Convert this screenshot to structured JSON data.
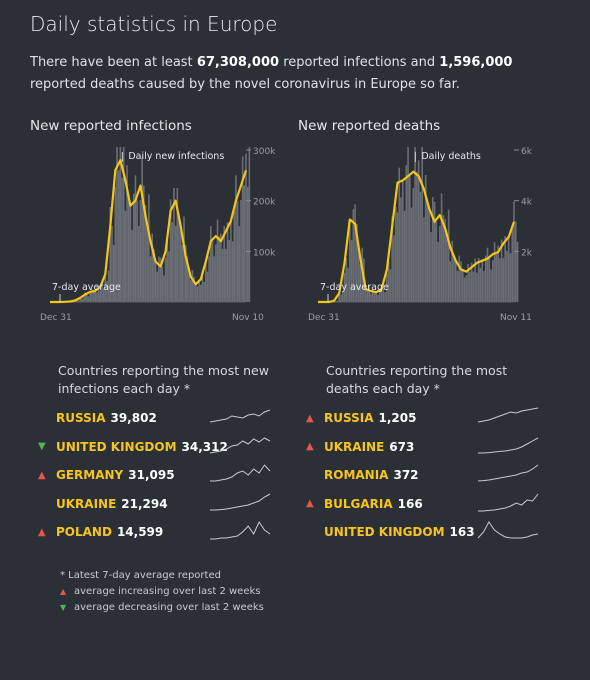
{
  "page": {
    "title": "Daily statistics in Europe",
    "summary": {
      "part1": "There have been at least",
      "infections": "67,308,000",
      "part2": "reported infections and",
      "deaths": "1,596,000",
      "part3": "reported deaths caused by the novel coronavirus in Europe so far."
    }
  },
  "colors": {
    "background": "#2b2f36",
    "accent_line": "#f5c518",
    "bars": "#7b7f86",
    "up": "#e8564b",
    "down": "#4fb65b"
  },
  "chart_data": [
    {
      "type": "area",
      "title": "New reported infections",
      "series_label": "Daily new infections",
      "average_label": "7-day average",
      "x_start": "Dec 31",
      "x_end": "Nov 10",
      "yticks": [
        "100k",
        "200k",
        "300k"
      ],
      "ylim": [
        0,
        300000
      ],
      "average_values": [
        0,
        0,
        0,
        300,
        1000,
        3000,
        8000,
        15000,
        20000,
        22000,
        30000,
        55000,
        150000,
        260000,
        280000,
        240000,
        190000,
        200000,
        230000,
        170000,
        120000,
        80000,
        70000,
        100000,
        180000,
        200000,
        150000,
        90000,
        50000,
        35000,
        45000,
        80000,
        120000,
        130000,
        120000,
        140000,
        160000,
        200000,
        230000,
        260000
      ]
    },
    {
      "type": "area",
      "title": "New reported deaths",
      "series_label": "Daily deaths",
      "average_label": "7-day average",
      "x_start": "Dec 31",
      "x_end": "Nov 11",
      "yticks": [
        "2k",
        "4k",
        "6k"
      ],
      "ylim": [
        0,
        7000
      ],
      "average_values": [
        0,
        0,
        0,
        50,
        400,
        1800,
        3800,
        3600,
        2000,
        600,
        500,
        450,
        600,
        1500,
        3500,
        5500,
        5600,
        5800,
        6000,
        5800,
        5200,
        4300,
        3700,
        4000,
        3400,
        2500,
        1900,
        1500,
        1400,
        1600,
        1800,
        1900,
        2000,
        2200,
        2300,
        2700,
        3000,
        3700
      ]
    }
  ],
  "lists": {
    "infections": {
      "title": "Countries reporting the most new infections each day *",
      "rows": [
        {
          "country": "RUSSIA",
          "value": "39,802",
          "trend": "none",
          "spark": [
            0.2,
            0.25,
            0.3,
            0.35,
            0.5,
            0.45,
            0.4,
            0.55,
            0.6,
            0.5,
            0.7,
            0.8
          ]
        },
        {
          "country": "UNITED KINGDOM",
          "value": "34,312",
          "trend": "down",
          "spark": [
            0.1,
            0.15,
            0.2,
            0.3,
            0.45,
            0.5,
            0.7,
            0.55,
            0.8,
            0.65,
            0.85,
            0.7
          ]
        },
        {
          "country": "GERMANY",
          "value": "31,095",
          "trend": "up",
          "spark": [
            0.1,
            0.1,
            0.15,
            0.2,
            0.3,
            0.5,
            0.6,
            0.4,
            0.7,
            0.5,
            0.9,
            0.6
          ]
        },
        {
          "country": "UKRAINE",
          "value": "21,294",
          "trend": "none",
          "spark": [
            0.1,
            0.1,
            0.12,
            0.15,
            0.2,
            0.25,
            0.3,
            0.35,
            0.45,
            0.55,
            0.75,
            0.9
          ]
        },
        {
          "country": "POLAND",
          "value": "14,599",
          "trend": "up",
          "spark": [
            0.05,
            0.05,
            0.1,
            0.1,
            0.15,
            0.2,
            0.4,
            0.7,
            0.3,
            0.9,
            0.5,
            0.3
          ]
        }
      ]
    },
    "deaths": {
      "title": "Countries reporting the most deaths each day *",
      "rows": [
        {
          "country": "RUSSIA",
          "value": "1,205",
          "trend": "up",
          "spark": [
            0.2,
            0.25,
            0.3,
            0.4,
            0.5,
            0.6,
            0.7,
            0.65,
            0.75,
            0.8,
            0.85,
            0.9
          ]
        },
        {
          "country": "UKRAINE",
          "value": "673",
          "trend": "up",
          "spark": [
            0.1,
            0.1,
            0.12,
            0.15,
            0.18,
            0.2,
            0.25,
            0.3,
            0.4,
            0.55,
            0.7,
            0.85
          ]
        },
        {
          "country": "ROMANIA",
          "value": "372",
          "trend": "none",
          "spark": [
            0.1,
            0.12,
            0.15,
            0.2,
            0.25,
            0.3,
            0.35,
            0.4,
            0.5,
            0.55,
            0.7,
            0.9
          ]
        },
        {
          "country": "BULGARIA",
          "value": "166",
          "trend": "up",
          "spark": [
            0.05,
            0.05,
            0.08,
            0.1,
            0.15,
            0.2,
            0.3,
            0.45,
            0.35,
            0.6,
            0.55,
            0.9
          ]
        },
        {
          "country": "UNITED KINGDOM",
          "value": "163",
          "trend": "none",
          "spark": [
            0.1,
            0.4,
            0.9,
            0.5,
            0.3,
            0.15,
            0.1,
            0.1,
            0.1,
            0.15,
            0.25,
            0.3
          ]
        }
      ]
    }
  },
  "footnote": {
    "line1": "* Latest 7-day average reported",
    "line2": "average increasing over last 2 weeks",
    "line3": "average decreasing over last 2 weeks"
  }
}
